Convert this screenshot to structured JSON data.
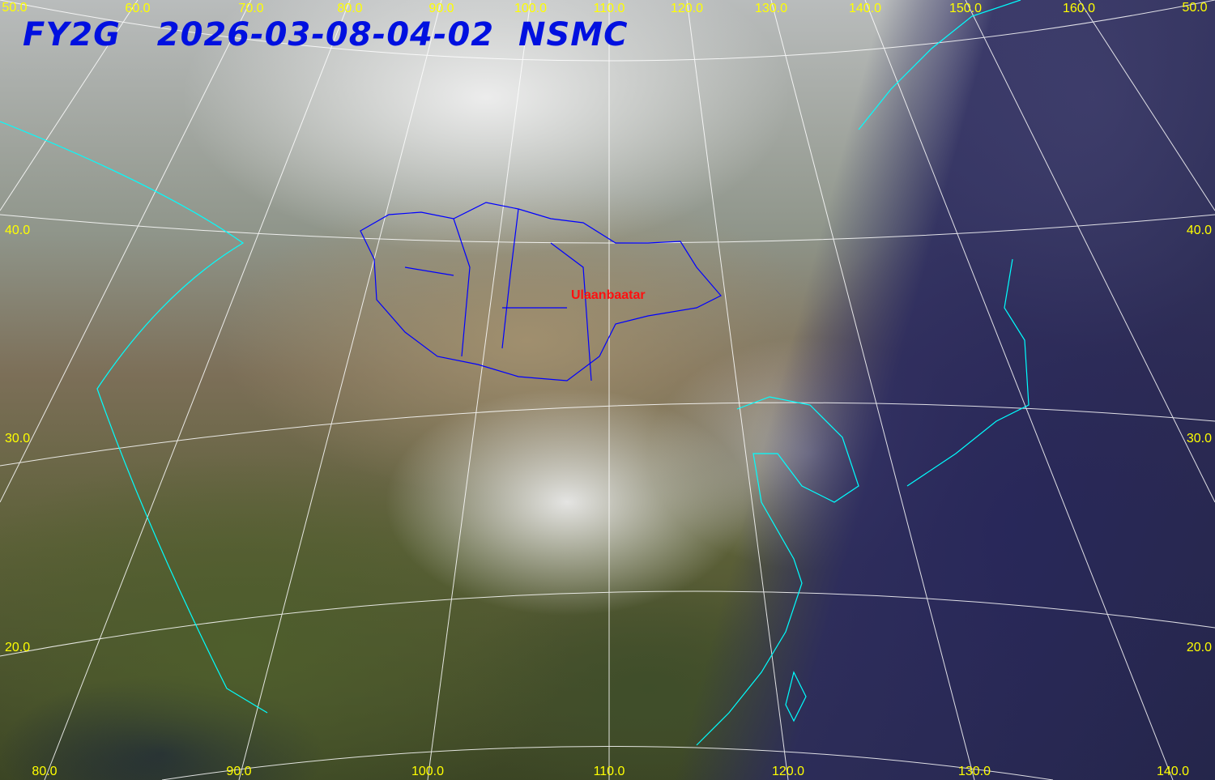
{
  "title": "FY2G   2026-03-08-04-02  NSMC",
  "top_longitude_labels": [
    "50.0",
    "60.0",
    "70.0",
    "80.0",
    "90.0",
    "100.0",
    "110.0",
    "120.0",
    "130.0",
    "140.0",
    "150.0",
    "160.0",
    "50.0"
  ],
  "bottom_longitude_labels": [
    "80.0",
    "90.0",
    "100.0",
    "110.0",
    "120.0",
    "130.0",
    "140.0"
  ],
  "left_latitude_labels": [
    "40.0",
    "30.0",
    "20.0"
  ],
  "right_latitude_labels": [
    "40.0",
    "30.0",
    "20.0"
  ],
  "city_label": "Ulaanbaatar",
  "colors": {
    "title": "#0010e0",
    "grid_labels": "#ffff00",
    "graticule": "#ffffff",
    "coastline": "#00ffff",
    "borders": "#0000ff",
    "city": "#ff1010"
  }
}
